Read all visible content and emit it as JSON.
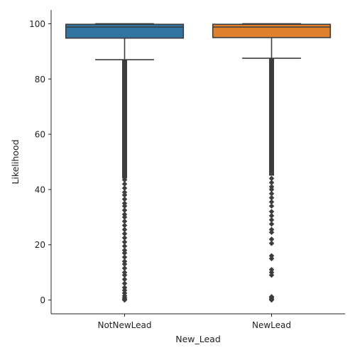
{
  "chart_data": {
    "type": "boxplot",
    "xlabel": "New_Lead",
    "ylabel": "Likelihood",
    "ylim": [
      -5,
      105
    ],
    "yticks": [
      0,
      20,
      40,
      60,
      80,
      100
    ],
    "grid": false,
    "line_color": "#3d3d3d",
    "boxes": [
      {
        "category": "NotNewLead",
        "color": "#3274a1",
        "q1": 94.8,
        "median": 98.8,
        "q3": 99.8,
        "whisker_low": 87.0,
        "whisker_high": 100.0,
        "outlier_dense_range": [
          44,
          87
        ],
        "outliers": [
          43.5,
          42,
          40.5,
          39,
          38,
          36.5,
          35,
          34,
          32.5,
          31,
          30,
          28.5,
          27,
          25.5,
          24,
          22.5,
          21,
          19.5,
          18,
          17,
          15.5,
          14,
          13,
          11.5,
          10,
          9,
          7.5,
          6,
          4.5,
          3.5,
          2.5,
          1.5,
          0.8,
          0.3,
          0
        ]
      },
      {
        "category": "NewLead",
        "color": "#e1812c",
        "q1": 95.0,
        "median": 98.8,
        "q3": 99.8,
        "whisker_low": 87.5,
        "whisker_high": 100.0,
        "outlier_dense_range": [
          45,
          87.5
        ],
        "outliers": [
          44,
          42.5,
          41,
          40,
          38.5,
          37,
          35.5,
          34,
          32,
          30.5,
          29,
          27.5,
          25.5,
          24.5,
          22,
          20.5,
          16,
          15,
          11,
          10,
          9,
          1.2,
          0.8,
          0.3,
          0
        ]
      }
    ]
  }
}
